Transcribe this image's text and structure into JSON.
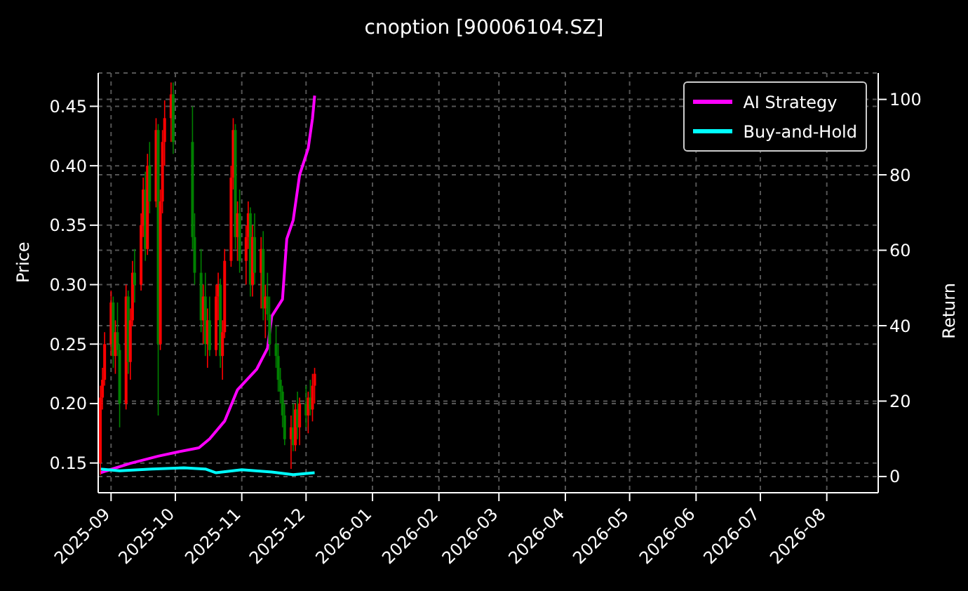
{
  "chart_data": {
    "type": "candlestick",
    "title": "cnoption [90006104.SZ]",
    "ylabel": "Price",
    "y2label": "Return",
    "x": [
      "2025-08-27",
      "2025-08-28",
      "2025-08-29",
      "2025-09-01",
      "2025-09-02",
      "2025-09-03",
      "2025-09-04",
      "2025-09-05",
      "2025-09-08",
      "2025-09-09",
      "2025-09-10",
      "2025-09-11",
      "2025-09-12",
      "2025-09-15",
      "2025-09-16",
      "2025-09-17",
      "2025-09-18",
      "2025-09-19",
      "2025-09-22",
      "2025-09-23",
      "2025-09-24",
      "2025-09-25",
      "2025-09-26",
      "2025-09-29",
      "2025-09-30",
      "2025-10-09",
      "2025-10-10",
      "2025-10-13",
      "2025-10-14",
      "2025-10-15",
      "2025-10-16",
      "2025-10-17",
      "2025-10-20",
      "2025-10-21",
      "2025-10-22",
      "2025-10-23",
      "2025-10-24",
      "2025-10-27",
      "2025-10-28",
      "2025-10-29",
      "2025-10-30",
      "2025-10-31",
      "2025-11-03",
      "2025-11-04",
      "2025-11-05",
      "2025-11-06",
      "2025-11-07",
      "2025-11-10",
      "2025-11-11",
      "2025-11-12",
      "2025-11-13",
      "2025-11-14",
      "2025-11-17",
      "2025-11-18",
      "2025-11-19",
      "2025-11-20",
      "2025-11-21",
      "2025-11-24",
      "2025-11-25",
      "2025-11-26",
      "2025-11-27",
      "2025-11-28",
      "2025-12-01",
      "2025-12-02",
      "2025-12-03",
      "2025-12-04",
      "2025-12-05"
    ],
    "ohlc": [
      [
        0.15,
        0.215,
        0.14,
        0.205
      ],
      [
        0.205,
        0.23,
        0.195,
        0.22
      ],
      [
        0.22,
        0.26,
        0.215,
        0.25
      ],
      [
        0.25,
        0.295,
        0.24,
        0.285
      ],
      [
        0.285,
        0.29,
        0.23,
        0.24
      ],
      [
        0.24,
        0.27,
        0.225,
        0.26
      ],
      [
        0.26,
        0.285,
        0.24,
        0.245
      ],
      [
        0.245,
        0.25,
        0.18,
        0.2
      ],
      [
        0.2,
        0.3,
        0.195,
        0.29
      ],
      [
        0.29,
        0.295,
        0.225,
        0.235
      ],
      [
        0.235,
        0.28,
        0.22,
        0.27
      ],
      [
        0.27,
        0.32,
        0.265,
        0.31
      ],
      [
        0.31,
        0.33,
        0.285,
        0.3
      ],
      [
        0.3,
        0.36,
        0.295,
        0.35
      ],
      [
        0.35,
        0.39,
        0.34,
        0.38
      ],
      [
        0.38,
        0.395,
        0.32,
        0.33
      ],
      [
        0.33,
        0.41,
        0.325,
        0.4
      ],
      [
        0.4,
        0.42,
        0.36,
        0.37
      ],
      [
        0.37,
        0.44,
        0.365,
        0.43
      ],
      [
        0.43,
        0.435,
        0.19,
        0.25
      ],
      [
        0.25,
        0.38,
        0.245,
        0.37
      ],
      [
        0.37,
        0.43,
        0.36,
        0.42
      ],
      [
        0.42,
        0.455,
        0.4,
        0.44
      ],
      [
        0.44,
        0.47,
        0.42,
        0.46
      ],
      [
        0.46,
        0.47,
        0.41,
        0.42
      ],
      [
        0.42,
        0.45,
        0.33,
        0.34
      ],
      [
        0.34,
        0.36,
        0.3,
        0.31
      ],
      [
        0.31,
        0.33,
        0.26,
        0.27
      ],
      [
        0.27,
        0.3,
        0.25,
        0.29
      ],
      [
        0.29,
        0.31,
        0.24,
        0.25
      ],
      [
        0.25,
        0.28,
        0.23,
        0.27
      ],
      [
        0.27,
        0.29,
        0.24,
        0.245
      ],
      [
        0.245,
        0.3,
        0.24,
        0.29
      ],
      [
        0.29,
        0.31,
        0.27,
        0.3
      ],
      [
        0.3,
        0.305,
        0.23,
        0.24
      ],
      [
        0.24,
        0.27,
        0.22,
        0.26
      ],
      [
        0.26,
        0.33,
        0.255,
        0.32
      ],
      [
        0.32,
        0.4,
        0.315,
        0.39
      ],
      [
        0.39,
        0.44,
        0.38,
        0.43
      ],
      [
        0.43,
        0.435,
        0.33,
        0.34
      ],
      [
        0.34,
        0.37,
        0.32,
        0.36
      ],
      [
        0.36,
        0.38,
        0.31,
        0.32
      ],
      [
        0.32,
        0.35,
        0.3,
        0.34
      ],
      [
        0.34,
        0.37,
        0.33,
        0.36
      ],
      [
        0.36,
        0.365,
        0.29,
        0.3
      ],
      [
        0.3,
        0.35,
        0.29,
        0.34
      ],
      [
        0.34,
        0.36,
        0.3,
        0.31
      ],
      [
        0.31,
        0.34,
        0.28,
        0.33
      ],
      [
        0.33,
        0.345,
        0.27,
        0.28
      ],
      [
        0.28,
        0.3,
        0.255,
        0.29
      ],
      [
        0.29,
        0.31,
        0.27,
        0.275
      ],
      [
        0.275,
        0.29,
        0.24,
        0.25
      ],
      [
        0.25,
        0.265,
        0.23,
        0.24
      ],
      [
        0.24,
        0.25,
        0.21,
        0.22
      ],
      [
        0.22,
        0.23,
        0.2,
        0.21
      ],
      [
        0.21,
        0.215,
        0.18,
        0.19
      ],
      [
        0.19,
        0.2,
        0.165,
        0.17
      ],
      [
        0.17,
        0.19,
        0.145,
        0.18
      ],
      [
        0.18,
        0.2,
        0.16,
        0.165
      ],
      [
        0.165,
        0.2,
        0.16,
        0.195
      ],
      [
        0.195,
        0.21,
        0.17,
        0.18
      ],
      [
        0.18,
        0.205,
        0.165,
        0.2
      ],
      [
        0.2,
        0.215,
        0.18,
        0.19
      ],
      [
        0.19,
        0.21,
        0.175,
        0.205
      ],
      [
        0.205,
        0.22,
        0.19,
        0.195
      ],
      [
        0.195,
        0.225,
        0.185,
        0.215
      ],
      [
        0.215,
        0.23,
        0.2,
        0.225
      ]
    ],
    "colors": [
      "#ff0000",
      "#ff0000",
      "#ff0000",
      "#ff0000",
      "#008000",
      "#ff0000",
      "#008000",
      "#008000",
      "#ff0000",
      "#008000",
      "#ff0000",
      "#ff0000",
      "#008000",
      "#ff0000",
      "#ff0000",
      "#008000",
      "#ff0000",
      "#008000",
      "#ff0000",
      "#008000",
      "#ff0000",
      "#ff0000",
      "#ff0000",
      "#ff0000",
      "#008000",
      "#008000",
      "#008000",
      "#008000",
      "#ff0000",
      "#008000",
      "#ff0000",
      "#008000",
      "#ff0000",
      "#ff0000",
      "#008000",
      "#ff0000",
      "#ff0000",
      "#ff0000",
      "#ff0000",
      "#008000",
      "#ff0000",
      "#008000",
      "#ff0000",
      "#ff0000",
      "#008000",
      "#ff0000",
      "#008000",
      "#ff0000",
      "#008000",
      "#ff0000",
      "#008000",
      "#008000",
      "#008000",
      "#008000",
      "#008000",
      "#008000",
      "#008000",
      "#ff0000",
      "#008000",
      "#ff0000",
      "#008000",
      "#ff0000",
      "#008000",
      "#ff0000",
      "#008000",
      "#ff0000",
      "#ff0000"
    ],
    "series": [
      {
        "type": "line",
        "name": "AI Strategy",
        "color": "#ff00ff",
        "axis": "y2",
        "x": [
          "2025-08-27",
          "2025-09-10",
          "2025-09-23",
          "2025-10-02",
          "2025-10-12",
          "2025-10-17",
          "2025-10-24",
          "2025-10-30",
          "2025-11-08",
          "2025-11-13",
          "2025-11-15",
          "2025-11-20",
          "2025-11-22",
          "2025-11-25",
          "2025-11-28",
          "2025-12-02",
          "2025-12-04",
          "2025-12-05"
        ],
        "values": [
          1,
          3.5,
          5.4,
          6.5,
          7.6,
          10,
          14.7,
          23,
          28.5,
          34,
          42.5,
          47,
          63,
          68,
          80,
          87,
          95,
          101
        ]
      },
      {
        "type": "line",
        "name": "Buy-and-Hold",
        "color": "#00ffff",
        "axis": "y2",
        "x": [
          "2025-08-27",
          "2025-09-05",
          "2025-09-20",
          "2025-10-05",
          "2025-10-15",
          "2025-10-20",
          "2025-11-01",
          "2025-11-15",
          "2025-11-25",
          "2025-12-05"
        ],
        "values": [
          2,
          1.5,
          2,
          2.3,
          2,
          1,
          1.8,
          1.2,
          0.5,
          1
        ]
      }
    ],
    "xlim": [
      "2025-08-26",
      "2026-08-25"
    ],
    "xticks": [
      "2025-09",
      "2025-10",
      "2025-11",
      "2025-12",
      "2026-01",
      "2026-02",
      "2026-03",
      "2026-04",
      "2026-05",
      "2026-06",
      "2026-07",
      "2026-08"
    ],
    "ylim": [
      0.125,
      0.478
    ],
    "yticks": [
      0.15,
      {
        "value": 0.2,
        "label": "0.20"
      },
      0.25,
      {
        "value": 0.3,
        "label": "0.30"
      },
      0.35,
      {
        "value": 0.4,
        "label": "0.40"
      },
      0.45
    ],
    "y2lim": [
      -4.3,
      107
    ],
    "y2ticks": [
      0,
      20,
      40,
      60,
      80,
      100
    ],
    "grid": true,
    "legend": "top right"
  }
}
